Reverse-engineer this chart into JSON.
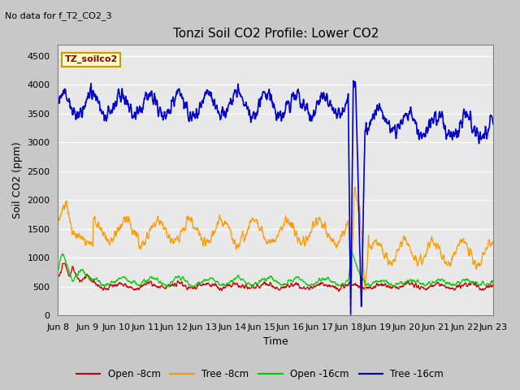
{
  "title": "Tonzi Soil CO2 Profile: Lower CO2",
  "no_data_text": "No data for f_T2_CO2_3",
  "xlabel": "Time",
  "ylabel": "Soil CO2 (ppm)",
  "ylim": [
    0,
    4700
  ],
  "yticks": [
    0,
    500,
    1000,
    1500,
    2000,
    2500,
    3000,
    3500,
    4000,
    4500
  ],
  "fig_bg_color": "#c8c8c8",
  "plot_bg_color": "#e8e8e8",
  "legend_label": "TZ_soilco2",
  "legend_box_color": "#ffffcc",
  "legend_box_edge": "#cc9900",
  "series_colors": {
    "open_8cm": "#cc0000",
    "tree_8cm": "#ff9900",
    "open_16cm": "#00cc00",
    "tree_16cm": "#0000cc"
  },
  "series_labels": [
    "Open -8cm",
    "Tree -8cm",
    "Open -16cm",
    "Tree -16cm"
  ],
  "x_tick_labels": [
    "Jun 8",
    "Jun 9",
    "Jun 10",
    "Jun 11",
    "Jun 12",
    "Jun 13",
    "Jun 14",
    "Jun 15",
    "Jun 16",
    "Jun 17",
    "Jun 18",
    "Jun 19",
    "Jun 20",
    "Jun 21",
    "Jun 22",
    "Jun 23"
  ],
  "n_points": 1440,
  "figsize": [
    6.4,
    4.8
  ],
  "dpi": 100
}
